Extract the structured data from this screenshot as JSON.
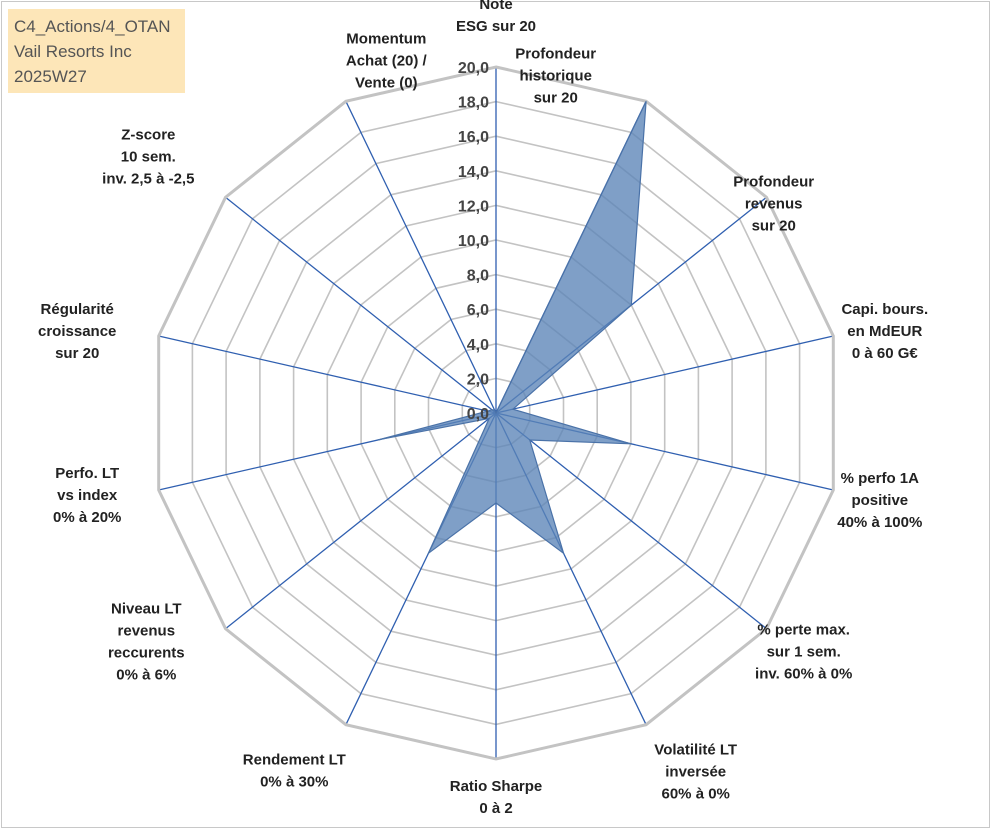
{
  "info_box": {
    "line1": "C4_Actions/4_OTAN",
    "line2": "Vail Resorts Inc",
    "line3": "2025W27"
  },
  "chart_data": {
    "type": "radar",
    "rmin": 0,
    "rmax": 20,
    "tick_step": 2,
    "ticks": [
      "0,0",
      "2,0",
      "4,0",
      "6,0",
      "8,0",
      "10,0",
      "12,0",
      "14,0",
      "16,0",
      "18,0",
      "20,0"
    ],
    "axes": [
      [
        "Note",
        "ESG sur 20"
      ],
      [
        "Profondeur",
        "historique",
        "sur 20"
      ],
      [
        "Profondeur",
        "revenus",
        "sur 20"
      ],
      [
        "Capi. bours.",
        "en MdEUR",
        "0 à 60 G€"
      ],
      [
        "% perfo 1A",
        "positive",
        "40% à 100%"
      ],
      [
        "% perte max.",
        "sur 1 sem.",
        "inv. 60% à 0%"
      ],
      [
        "Volatilité LT",
        "inversée",
        "60% à 0%"
      ],
      [
        "Ratio Sharpe",
        "0 à 2"
      ],
      [
        "Rendement LT",
        "0% à 30%"
      ],
      [
        "Niveau LT",
        "revenus",
        "reccurents",
        "0% à 6%"
      ],
      [
        "Perfo. LT",
        "vs index",
        "0% à 20%"
      ],
      [
        "Régularité",
        "croissance",
        "sur 20"
      ],
      [
        "Z-score",
        "10 sem.",
        "inv. 2,5 à -2,5"
      ],
      [
        "Momentum",
        "Achat (20) /",
        "Vente (0)"
      ]
    ],
    "series": [
      {
        "values": [
          0.0,
          20.0,
          10.0,
          1.0,
          8.0,
          2.5,
          9.0,
          5.2,
          9.0,
          0.5,
          7.0,
          0.5,
          0.3,
          0.2
        ],
        "fill": "#5b84b7",
        "fill_opacity": 0.78,
        "stroke": "#4a72a8"
      }
    ],
    "grid_color": "#c3c3c3",
    "spoke_color": "#2f5fb0"
  }
}
